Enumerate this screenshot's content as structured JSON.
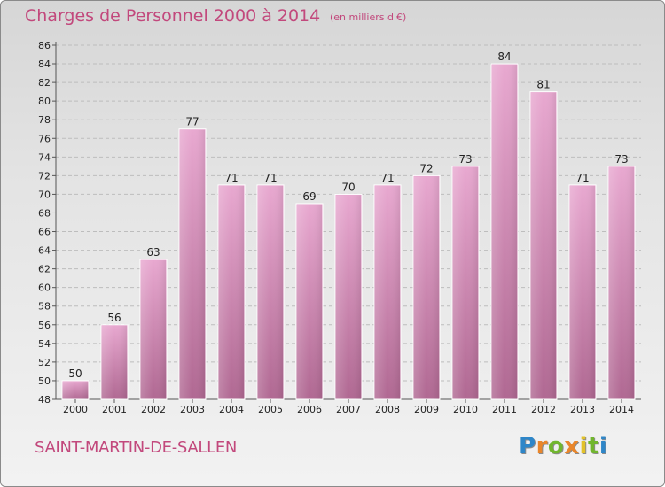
{
  "header": {
    "title": "Charges de Personnel 2000 à 2014",
    "subtitle": "(en milliers d'€)"
  },
  "footer": {
    "commune": "SAINT-MARTIN-DE-SALLEN",
    "logo": "Proxiti"
  },
  "colors": {
    "title": "#c2487c",
    "bar_light": "#e8a8d0",
    "bar_dark": "#b06892"
  },
  "chart_data": {
    "type": "bar",
    "title": "Charges de Personnel 2000 à 2014",
    "subtitle": "(en milliers d'€)",
    "categories": [
      "2000",
      "2001",
      "2002",
      "2003",
      "2004",
      "2005",
      "2006",
      "2007",
      "2008",
      "2009",
      "2010",
      "2011",
      "2012",
      "2013",
      "2014"
    ],
    "values": [
      50,
      56,
      63,
      77,
      71,
      71,
      69,
      70,
      71,
      72,
      73,
      84,
      81,
      71,
      73
    ],
    "ylim": [
      48,
      86
    ],
    "ytick_step": 2,
    "grid": true,
    "legend": "none"
  }
}
